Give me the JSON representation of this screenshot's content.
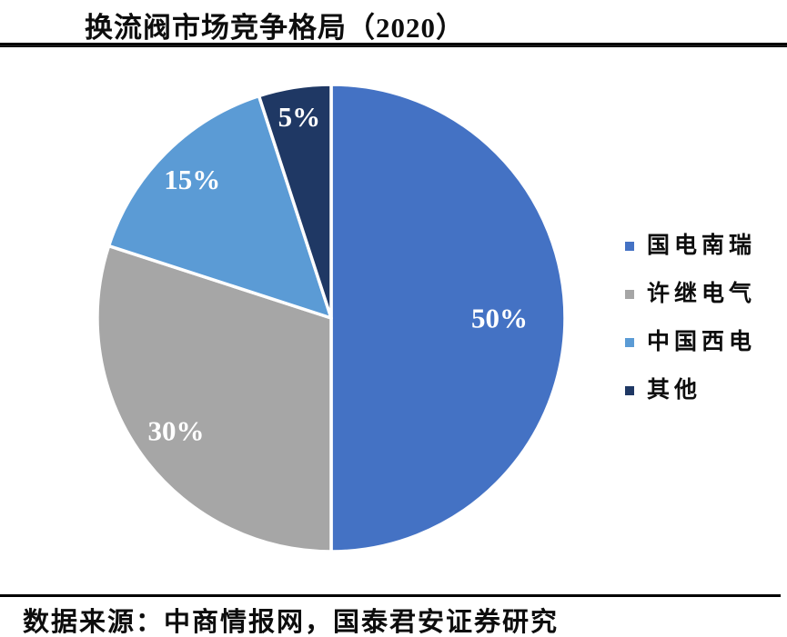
{
  "header": {
    "title": "换流阀市场竞争格局（2020）"
  },
  "chart_data": {
    "type": "pie",
    "title": "换流阀市场竞争格局（2020）",
    "unit": "%",
    "start_angle_deg": 0,
    "direction": "clockwise",
    "legend_position": "right",
    "slices": [
      {
        "name": "国电南瑞",
        "value": 50,
        "label": "50%",
        "color": "#4472C4"
      },
      {
        "name": "许继电气",
        "value": 30,
        "label": "30%",
        "color": "#A6A6A6"
      },
      {
        "name": "中国西电",
        "value": 15,
        "label": "15%",
        "color": "#5B9BD5"
      },
      {
        "name": "其他",
        "value": 5,
        "label": "5%",
        "color": "#1F3864"
      }
    ],
    "label_color": "#FFFFFF",
    "separator_color": "#FFFFFF"
  },
  "footer": {
    "source": "数据来源：中商情报网，国泰君安证券研究"
  }
}
